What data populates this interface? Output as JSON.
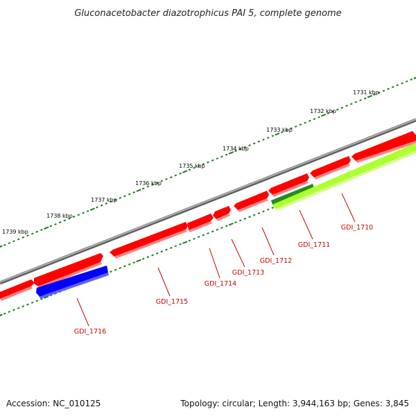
{
  "title": "Gluconacetobacter diazotrophicus PAI 5, complete genome",
  "footer": {
    "accession": "Accession: NC_010125",
    "summary": "Topology: circular; Length: 3,944,163 bp; Genes: 3,845"
  },
  "scale_labels": [
    "1731 kbp",
    "1732 kbp",
    "1733 kbp",
    "1734 kbp",
    "1735 kbp",
    "1736 kbp",
    "1737 kbp",
    "1738 kbp",
    "1739 kbp"
  ],
  "genes": [
    {
      "label": "GDI_1710",
      "strand": "minus",
      "color": "#adff2f"
    },
    {
      "label": "GDI_1711",
      "strand": "minus",
      "color": "#228b22"
    },
    {
      "label": "GDI_1712",
      "strand": "plus",
      "color": "#ff0000"
    },
    {
      "label": "GDI_1713",
      "strand": "plus",
      "color": "#ff0000"
    },
    {
      "label": "GDI_1714",
      "strand": "plus",
      "color": "#ff0000"
    },
    {
      "label": "GDI_1715",
      "strand": "plus",
      "color": "#ff0000"
    },
    {
      "label": "GDI_1716",
      "strand": "minus",
      "color": "#0000ff"
    }
  ],
  "colors": {
    "backbone": "#808080",
    "forward_cds": "#ff0000",
    "reverse_cds": "#0000ff",
    "trna": "#adff2f",
    "ruler": "#1a7a1a",
    "label": "#cc0000"
  }
}
